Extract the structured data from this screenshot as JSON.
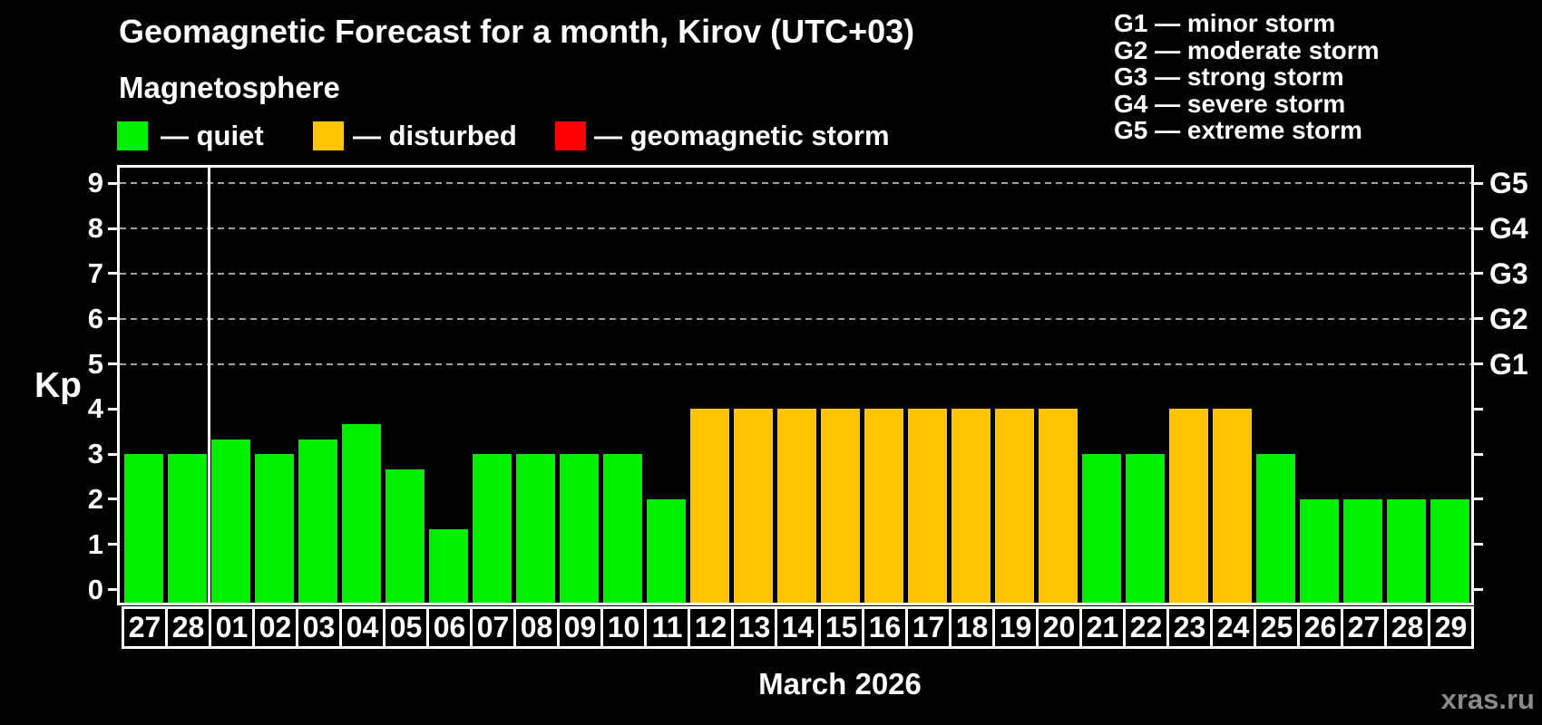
{
  "title": "Geomagnetic Forecast for a month, Kirov (UTC+03)",
  "subtitle": "Magnetosphere",
  "legend": [
    {
      "key": "quiet",
      "label": "— quiet",
      "color": "#00ee00"
    },
    {
      "key": "disturbed",
      "label": "— disturbed",
      "color": "#ffc300"
    },
    {
      "key": "storm",
      "label": "— geomagnetic storm",
      "color": "#ff0000"
    }
  ],
  "storm_scale_legend": [
    "G1 — minor storm",
    "G2 — moderate storm",
    "G3 — strong storm",
    "G4 — severe storm",
    "G5 — extreme storm"
  ],
  "y_axis": {
    "label": "Kp",
    "ticks": [
      0,
      1,
      2,
      3,
      4,
      5,
      6,
      7,
      8,
      9
    ]
  },
  "right_axis": {
    "labels": [
      {
        "label": "G1",
        "kp": 5
      },
      {
        "label": "G2",
        "kp": 6
      },
      {
        "label": "G3",
        "kp": 7
      },
      {
        "label": "G4",
        "kp": 8
      },
      {
        "label": "G5",
        "kp": 9
      }
    ]
  },
  "x_axis": {
    "month_label": "March 2026",
    "month_boundary_after_index": 1
  },
  "watermark": "xras.ru",
  "chart_data": {
    "type": "bar",
    "title": "Geomagnetic Forecast for a month, Kirov (UTC+03)",
    "ylabel": "Kp",
    "ylim": [
      0,
      9
    ],
    "gridlines_at": [
      5,
      6,
      7,
      8,
      9
    ],
    "grid": "dashed-gray",
    "legend_position": "top",
    "categories": [
      "27",
      "28",
      "01",
      "02",
      "03",
      "04",
      "05",
      "06",
      "07",
      "08",
      "09",
      "10",
      "11",
      "12",
      "13",
      "14",
      "15",
      "16",
      "17",
      "18",
      "19",
      "20",
      "21",
      "22",
      "23",
      "24",
      "25",
      "26",
      "27",
      "28",
      "29"
    ],
    "values": [
      3,
      3,
      3.33,
      3,
      3.33,
      3.67,
      2.67,
      1.33,
      3,
      3,
      3,
      3,
      2,
      4,
      4,
      4,
      4,
      4,
      4,
      4,
      4,
      4,
      3,
      3,
      4,
      4,
      3,
      2,
      2,
      2,
      2
    ],
    "status": [
      "quiet",
      "quiet",
      "quiet",
      "quiet",
      "quiet",
      "quiet",
      "quiet",
      "quiet",
      "quiet",
      "quiet",
      "quiet",
      "quiet",
      "quiet",
      "disturbed",
      "disturbed",
      "disturbed",
      "disturbed",
      "disturbed",
      "disturbed",
      "disturbed",
      "disturbed",
      "disturbed",
      "quiet",
      "quiet",
      "disturbed",
      "disturbed",
      "quiet",
      "quiet",
      "quiet",
      "quiet",
      "quiet"
    ]
  }
}
